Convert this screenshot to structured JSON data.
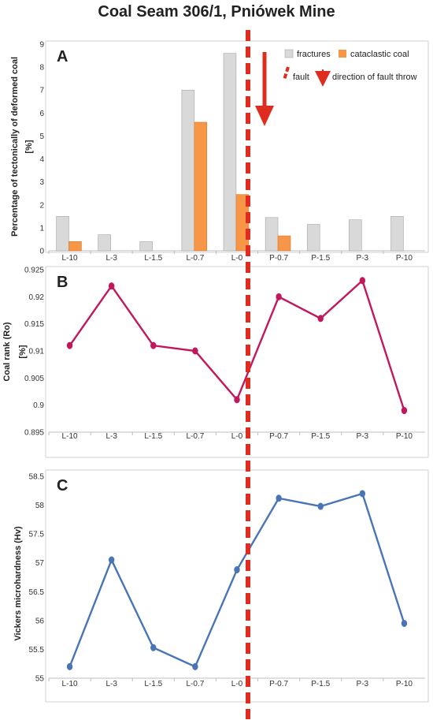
{
  "title": "Coal Seam 306/1, Pniówek Mine",
  "fault_color": "#e02b20",
  "chart_data": [
    {
      "panel": "A",
      "type": "bar",
      "ylabel": "Percentage of tectonically of deformed coal [%]",
      "ylim": [
        0,
        9
      ],
      "yticks": [
        "0",
        "1",
        "2",
        "3",
        "4",
        "5",
        "6",
        "7",
        "8",
        "9"
      ],
      "categories": [
        "L-10",
        "L-3",
        "L-1.5",
        "L-0.7",
        "L-0",
        "P-0.7",
        "P-1.5",
        "P-3",
        "P-10"
      ],
      "series": [
        {
          "name": "fractures",
          "color": "#d9d9d9",
          "values": [
            1.5,
            0.7,
            0.4,
            7.0,
            8.6,
            1.45,
            1.15,
            1.35,
            1.5
          ]
        },
        {
          "name": "cataclastic coal",
          "color": "#f79646",
          "values": [
            0.4,
            0,
            0,
            5.6,
            2.45,
            0.65,
            0,
            0,
            0
          ]
        }
      ],
      "legend": {
        "fault": "fault",
        "throw": "direction of fault throw"
      }
    },
    {
      "panel": "B",
      "type": "line",
      "ylabel": "Coal rank (Ro) [%]",
      "ylim": [
        0.895,
        0.925
      ],
      "yticks": [
        "0.895",
        "0.9",
        "0.905",
        "0.91",
        "0.915",
        "0.92",
        "0.925"
      ],
      "categories": [
        "L-10",
        "L-3",
        "L-1.5",
        "L-0.7",
        "L-0",
        "P-0.7",
        "P-1.5",
        "P-3",
        "P-10"
      ],
      "series": [
        {
          "color": "#c2185b",
          "values": [
            0.911,
            0.922,
            0.911,
            0.91,
            0.901,
            0.92,
            0.916,
            0.923,
            0.899
          ]
        }
      ]
    },
    {
      "panel": "C",
      "type": "line",
      "ylabel": "Vickers microhardness (Hv)",
      "ylim": [
        55,
        58.5
      ],
      "yticks": [
        "55",
        "55.5",
        "56",
        "56.5",
        "57",
        "57.5",
        "58",
        "58.5"
      ],
      "categories": [
        "L-10",
        "L-3",
        "L-1.5",
        "L-0.7",
        "L-0",
        "P-0.7",
        "P-1.5",
        "P-3",
        "P-10"
      ],
      "series": [
        {
          "color": "#4a75b5",
          "values": [
            55.2,
            57.05,
            55.53,
            55.2,
            56.88,
            58.12,
            57.98,
            58.2,
            55.95
          ]
        }
      ]
    }
  ]
}
